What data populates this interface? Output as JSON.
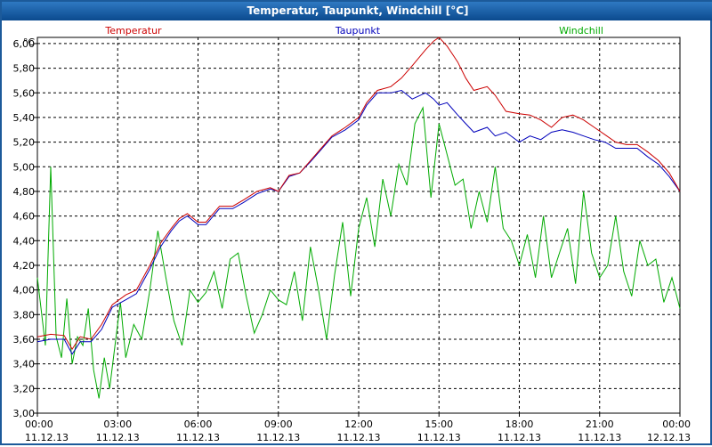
{
  "window": {
    "title": "Temperatur, Taupunkt, Windchill [°C]"
  },
  "colors": {
    "temperatur": "#cc0000",
    "taupunkt": "#0000bb",
    "windchill": "#00aa00",
    "frame": "#1c5a9a"
  },
  "chart_data": {
    "type": "line",
    "title": "Temperatur, Taupunkt, Windchill [°C]",
    "unit_label": "°C",
    "ylim": [
      3.0,
      6.05
    ],
    "y_ticks": [
      "6,00",
      "5,80",
      "5,60",
      "5,40",
      "5,20",
      "5,00",
      "4,80",
      "4,60",
      "4,40",
      "4,20",
      "4,00",
      "3,80",
      "3,60",
      "3,40",
      "3,20",
      "3,00"
    ],
    "y_tick_values": [
      6.0,
      5.8,
      5.6,
      5.4,
      5.2,
      5.0,
      4.8,
      4.6,
      4.4,
      4.2,
      4.0,
      3.8,
      3.6,
      3.4,
      3.2,
      3.0
    ],
    "xlim_hours": [
      0,
      24
    ],
    "x_ticks": [
      {
        "hour": 0,
        "time": "00:00",
        "date": "11.12.13"
      },
      {
        "hour": 3,
        "time": "03:00",
        "date": "11.12.13"
      },
      {
        "hour": 6,
        "time": "06:00",
        "date": "11.12.13"
      },
      {
        "hour": 9,
        "time": "09:00",
        "date": "11.12.13"
      },
      {
        "hour": 12,
        "time": "12:00",
        "date": "11.12.13"
      },
      {
        "hour": 15,
        "time": "15:00",
        "date": "11.12.13"
      },
      {
        "hour": 18,
        "time": "18:00",
        "date": "11.12.13"
      },
      {
        "hour": 21,
        "time": "21:00",
        "date": "11.12.13"
      },
      {
        "hour": 24,
        "time": "00:00",
        "date": "12.12.13"
      }
    ],
    "grid": true,
    "legend": [
      {
        "name": "Temperatur",
        "color": "#cc0000",
        "position": "left"
      },
      {
        "name": "Taupunkt",
        "color": "#0000bb",
        "position": "center"
      },
      {
        "name": "Windchill",
        "color": "#00aa00",
        "position": "right"
      }
    ],
    "series": [
      {
        "name": "Temperatur",
        "color": "#cc0000",
        "x": [
          0,
          0.5,
          1,
          1.3,
          1.6,
          2,
          2.4,
          2.8,
          3.3,
          3.7,
          4.2,
          4.6,
          5,
          5.3,
          5.6,
          6,
          6.3,
          6.8,
          7.3,
          7.7,
          8.2,
          8.7,
          9,
          9.4,
          9.8,
          10.2,
          10.6,
          11,
          11.5,
          12,
          12.3,
          12.7,
          13.2,
          13.6,
          14,
          14.5,
          14.8,
          15,
          15.3,
          15.7,
          16,
          16.3,
          16.8,
          17.1,
          17.5,
          18,
          18.4,
          18.8,
          19.2,
          19.6,
          20,
          20.4,
          20.8,
          21.2,
          21.6,
          22,
          22.4,
          22.8,
          23.2,
          23.6,
          24
        ],
        "y": [
          3.62,
          3.64,
          3.63,
          3.52,
          3.62,
          3.6,
          3.72,
          3.88,
          3.96,
          4.0,
          4.2,
          4.38,
          4.5,
          4.58,
          4.62,
          4.55,
          4.55,
          4.68,
          4.68,
          4.73,
          4.8,
          4.83,
          4.8,
          4.93,
          4.95,
          5.05,
          5.15,
          5.25,
          5.32,
          5.4,
          5.52,
          5.62,
          5.65,
          5.72,
          5.82,
          5.95,
          6.02,
          6.05,
          5.98,
          5.85,
          5.72,
          5.62,
          5.65,
          5.58,
          5.45,
          5.43,
          5.42,
          5.38,
          5.32,
          5.4,
          5.42,
          5.38,
          5.32,
          5.26,
          5.2,
          5.18,
          5.18,
          5.12,
          5.05,
          4.95,
          4.8
        ]
      },
      {
        "name": "Taupunkt",
        "color": "#0000bb",
        "x": [
          0,
          0.5,
          1,
          1.3,
          1.6,
          2,
          2.4,
          2.8,
          3.3,
          3.7,
          4.2,
          4.6,
          5,
          5.3,
          5.6,
          6,
          6.3,
          6.8,
          7.3,
          7.7,
          8.2,
          8.7,
          9,
          9.4,
          9.8,
          10.2,
          10.6,
          11,
          11.5,
          12,
          12.3,
          12.7,
          13.2,
          13.6,
          14,
          14.5,
          14.8,
          15,
          15.3,
          15.7,
          16,
          16.3,
          16.8,
          17.1,
          17.5,
          18,
          18.4,
          18.8,
          19.2,
          19.6,
          20,
          20.4,
          20.8,
          21.2,
          21.6,
          22,
          22.4,
          22.8,
          23.2,
          23.6,
          24
        ],
        "y": [
          3.58,
          3.6,
          3.6,
          3.48,
          3.58,
          3.58,
          3.68,
          3.86,
          3.92,
          3.97,
          4.17,
          4.35,
          4.48,
          4.56,
          4.6,
          4.53,
          4.53,
          4.66,
          4.66,
          4.71,
          4.78,
          4.82,
          4.8,
          4.92,
          4.95,
          5.04,
          5.14,
          5.24,
          5.3,
          5.38,
          5.5,
          5.6,
          5.6,
          5.62,
          5.55,
          5.6,
          5.55,
          5.5,
          5.52,
          5.42,
          5.35,
          5.28,
          5.32,
          5.25,
          5.28,
          5.2,
          5.25,
          5.22,
          5.28,
          5.3,
          5.28,
          5.25,
          5.22,
          5.2,
          5.15,
          5.15,
          5.15,
          5.08,
          5.02,
          4.92,
          4.8
        ]
      },
      {
        "name": "Windchill",
        "color": "#00aa00",
        "x": [
          0,
          0.3,
          0.5,
          0.7,
          0.9,
          1.1,
          1.3,
          1.5,
          1.7,
          1.9,
          2.1,
          2.3,
          2.5,
          2.7,
          2.9,
          3.1,
          3.3,
          3.6,
          3.9,
          4.2,
          4.5,
          4.8,
          5.1,
          5.4,
          5.7,
          6,
          6.3,
          6.6,
          6.9,
          7.2,
          7.5,
          7.8,
          8.1,
          8.4,
          8.7,
          9,
          9.3,
          9.6,
          9.9,
          10.2,
          10.5,
          10.8,
          11.1,
          11.4,
          11.7,
          12,
          12.3,
          12.6,
          12.9,
          13.2,
          13.5,
          13.8,
          14.1,
          14.4,
          14.7,
          15,
          15.3,
          15.6,
          15.9,
          16.2,
          16.5,
          16.8,
          17.1,
          17.4,
          17.7,
          18,
          18.3,
          18.6,
          18.9,
          19.2,
          19.5,
          19.8,
          20.1,
          20.4,
          20.7,
          21,
          21.3,
          21.6,
          21.9,
          22.2,
          22.5,
          22.8,
          23.1,
          23.4,
          23.7,
          24
        ],
        "y": [
          4.1,
          3.55,
          5.0,
          3.62,
          3.45,
          3.93,
          3.4,
          3.62,
          3.55,
          3.85,
          3.35,
          3.12,
          3.45,
          3.2,
          3.55,
          3.9,
          3.45,
          3.72,
          3.6,
          4.0,
          4.48,
          4.1,
          3.75,
          3.55,
          4.0,
          3.9,
          3.98,
          4.15,
          3.85,
          4.25,
          4.3,
          3.95,
          3.65,
          3.8,
          4.0,
          3.92,
          3.88,
          4.15,
          3.75,
          4.35,
          4.0,
          3.6,
          4.12,
          4.55,
          3.95,
          4.5,
          4.75,
          4.35,
          4.9,
          4.6,
          5.02,
          4.85,
          5.35,
          5.48,
          4.75,
          5.35,
          5.1,
          4.85,
          4.9,
          4.5,
          4.8,
          4.55,
          5.0,
          4.5,
          4.4,
          4.2,
          4.45,
          4.1,
          4.6,
          4.1,
          4.3,
          4.5,
          4.05,
          4.8,
          4.3,
          4.1,
          4.2,
          4.6,
          4.15,
          3.95,
          4.4,
          4.2,
          4.25,
          3.9,
          4.1,
          3.85
        ]
      }
    ]
  }
}
